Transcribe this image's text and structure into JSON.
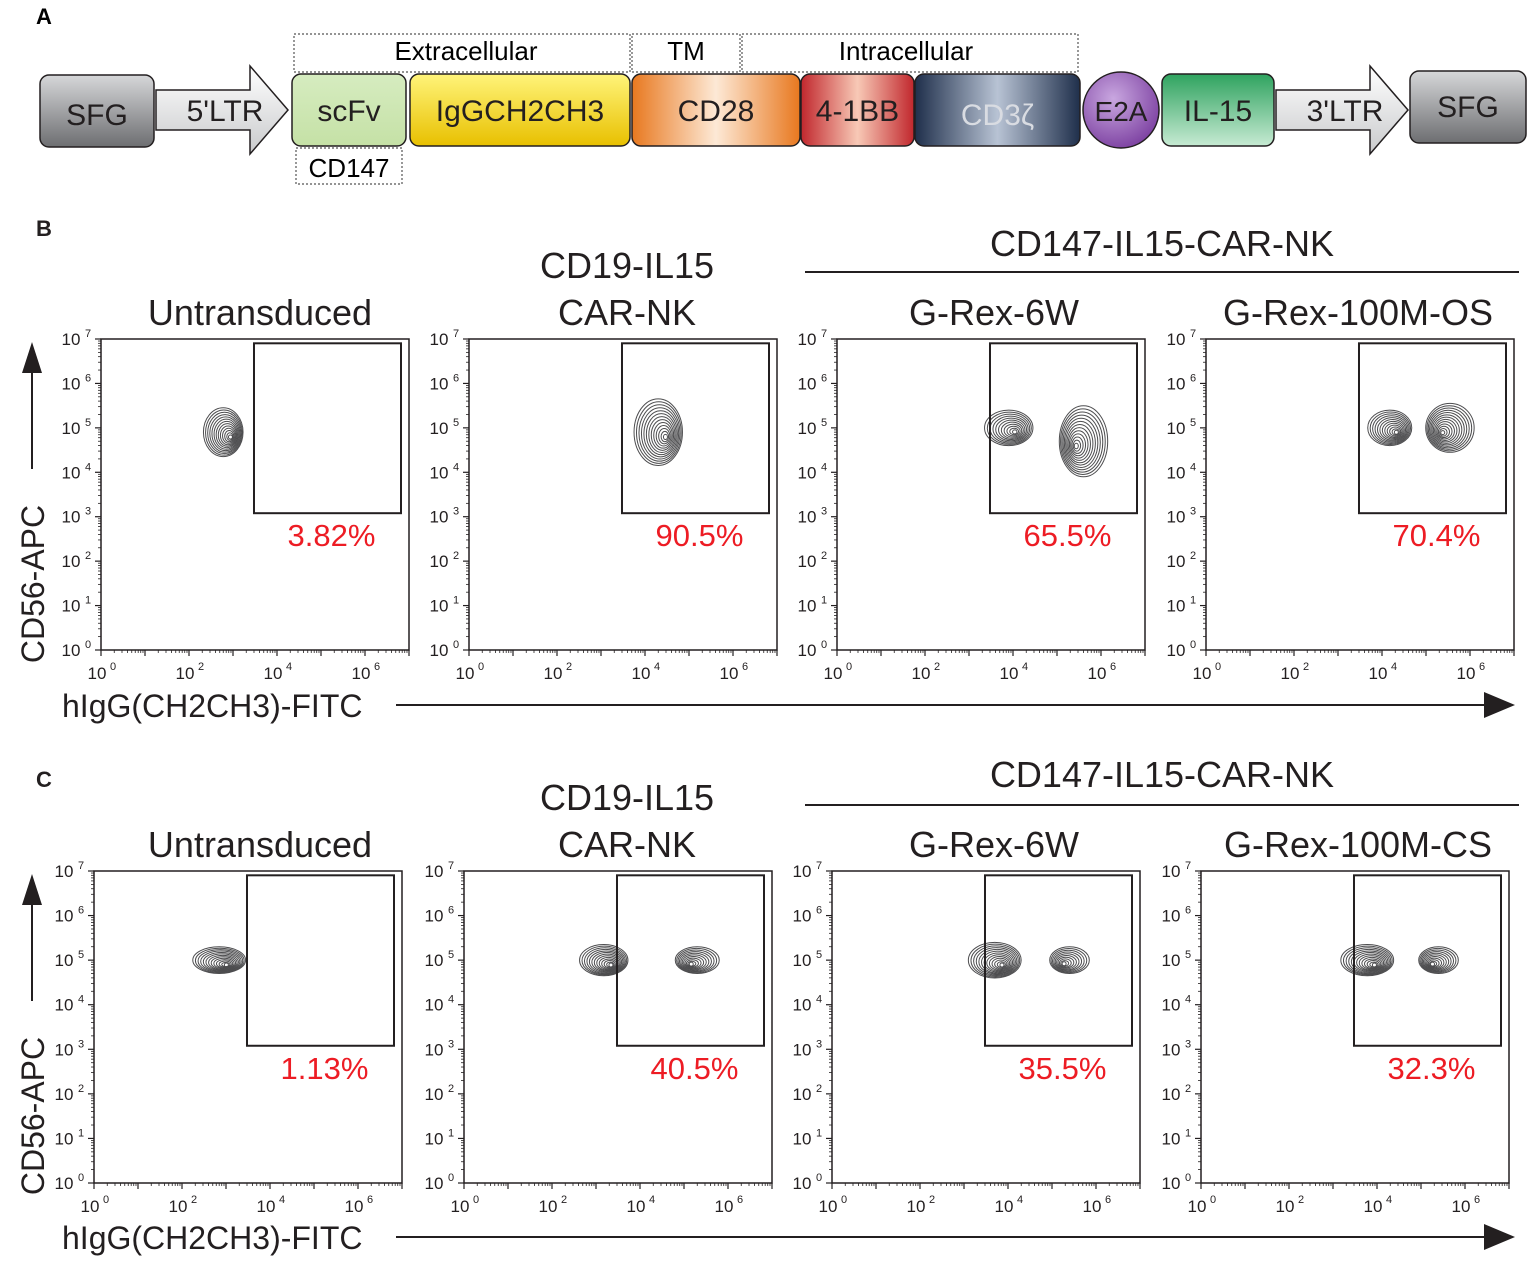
{
  "panel_a": {
    "label": "A",
    "region_labels": {
      "extracellular": "Extracellular",
      "tm": "TM",
      "intracellular": "Intracellular"
    },
    "sublabel": "CD147",
    "elements": [
      {
        "label": "SFG",
        "kind": "ltr",
        "fill": [
          "#d6d7d9",
          "#6d6e71"
        ]
      },
      {
        "label": "5'LTR",
        "kind": "arrow",
        "fill": [
          "#ffffff",
          "#c9cacc"
        ]
      },
      {
        "label": "scFv",
        "kind": "box",
        "fill": [
          "#d6ecc0",
          "#c5e1a6"
        ]
      },
      {
        "label": "IgGCH2CH3",
        "kind": "box",
        "fill": [
          "#fff47a",
          "#e8c000"
        ]
      },
      {
        "label": "CD28",
        "kind": "box",
        "fill": [
          "#e8781f",
          "#fde9d6"
        ]
      },
      {
        "label": "4-1BB",
        "kind": "box",
        "fill": [
          "#c1272d",
          "#f8c9b6"
        ]
      },
      {
        "label": "CD3ζ",
        "kind": "box",
        "fill": [
          "#1f2f4b",
          "#b8c3d4"
        ]
      },
      {
        "label": "E2A",
        "kind": "circle",
        "fill": [
          "#c9a7e0",
          "#7b3fa0"
        ]
      },
      {
        "label": "IL-15",
        "kind": "box",
        "fill": [
          "#2fa35f",
          "#c7ead3"
        ]
      },
      {
        "label": "3'LTR",
        "kind": "arrow",
        "fill": [
          "#ffffff",
          "#c9cacc"
        ]
      },
      {
        "label": "SFG",
        "kind": "ltr",
        "fill": [
          "#d6d7d9",
          "#6d6e71"
        ]
      }
    ]
  },
  "flow_rows": [
    {
      "label": "B",
      "group_title": "CD147-IL15-CAR-NK",
      "y_axis_label": "CD56-APC",
      "x_axis_label": "hIgG(CH2CH3)-FITC",
      "plots": [
        {
          "title_lines": [
            "Untransduced"
          ],
          "gate_percent": "3.82%"
        },
        {
          "title_lines": [
            "CD19-IL15",
            "CAR-NK"
          ],
          "gate_percent": "90.5%"
        },
        {
          "title_lines": [
            "G-Rex-6W"
          ],
          "gate_percent": "65.5%"
        },
        {
          "title_lines": [
            "G-Rex-100M-OS"
          ],
          "gate_percent": "70.4%"
        }
      ]
    },
    {
      "label": "C",
      "group_title": "CD147-IL15-CAR-NK",
      "y_axis_label": "CD56-APC",
      "x_axis_label": "hIgG(CH2CH3)-FITC",
      "plots": [
        {
          "title_lines": [
            "Untransduced"
          ],
          "gate_percent": "1.13%"
        },
        {
          "title_lines": [
            "CD19-IL15",
            "CAR-NK"
          ],
          "gate_percent": "40.5%"
        },
        {
          "title_lines": [
            "G-Rex-6W"
          ],
          "gate_percent": "35.5%"
        },
        {
          "title_lines": [
            "G-Rex-100M-CS"
          ],
          "gate_percent": "32.3%"
        }
      ]
    }
  ],
  "chart_data": [
    {
      "type": "contour",
      "panel": "B",
      "xlabel": "hIgG(CH2CH3)-FITC",
      "ylabel": "CD56-APC",
      "x_scale": "log",
      "y_scale": "log",
      "xlim": [
        1,
        10000000
      ],
      "ylim": [
        1,
        10000000
      ],
      "x_ticks": [
        "10^0",
        "10^2",
        "10^4",
        "10^6"
      ],
      "y_ticks": [
        "10^0",
        "10^1",
        "10^2",
        "10^3",
        "10^4",
        "10^5",
        "10^6",
        "10^7"
      ],
      "gate": {
        "x": [
          3000,
          10000000
        ],
        "y": [
          1200,
          8000000
        ]
      },
      "series": [
        {
          "name": "Untransduced",
          "gate_percent": 3.82,
          "populations": [
            {
              "x": 600,
              "y": 80000,
              "wx": 0.45,
              "wy": 0.55,
              "weight": 1.0
            }
          ]
        },
        {
          "name": "CD19-IL15 CAR-NK",
          "gate_percent": 90.5,
          "populations": [
            {
              "x": 20000,
              "y": 80000,
              "wx": 0.55,
              "wy": 0.75,
              "weight": 1.0
            }
          ]
        },
        {
          "name": "G-Rex-6W",
          "gate_percent": 65.5,
          "populations": [
            {
              "x": 8000,
              "y": 100000,
              "wx": 0.55,
              "wy": 0.4,
              "weight": 0.7
            },
            {
              "x": 400000,
              "y": 50000,
              "wx": 0.55,
              "wy": 0.8,
              "weight": 1.0
            }
          ]
        },
        {
          "name": "G-Rex-100M-OS",
          "gate_percent": 70.4,
          "populations": [
            {
              "x": 15000,
              "y": 100000,
              "wx": 0.5,
              "wy": 0.4,
              "weight": 0.8
            },
            {
              "x": 350000,
              "y": 100000,
              "wx": 0.55,
              "wy": 0.55,
              "weight": 1.0
            }
          ]
        }
      ]
    },
    {
      "type": "contour",
      "panel": "C",
      "xlabel": "hIgG(CH2CH3)-FITC",
      "ylabel": "CD56-APC",
      "x_scale": "log",
      "y_scale": "log",
      "xlim": [
        1,
        10000000
      ],
      "ylim": [
        1,
        10000000
      ],
      "x_ticks": [
        "10^0",
        "10^2",
        "10^4",
        "10^6"
      ],
      "y_ticks": [
        "10^0",
        "10^1",
        "10^2",
        "10^3",
        "10^4",
        "10^5",
        "10^6",
        "10^7"
      ],
      "gate": {
        "x": [
          3000,
          10000000
        ],
        "y": [
          1200,
          8000000
        ]
      },
      "series": [
        {
          "name": "Untransduced",
          "gate_percent": 1.13,
          "populations": [
            {
              "x": 700,
              "y": 100000,
              "wx": 0.6,
              "wy": 0.3,
              "weight": 1.0
            },
            {
              "x": 0.4,
              "y": 100000,
              "wx": 0.35,
              "wy": 0.2,
              "weight": 0.6
            }
          ]
        },
        {
          "name": "CD19-IL15 CAR-NK",
          "gate_percent": 40.5,
          "populations": [
            {
              "x": 1500,
              "y": 100000,
              "wx": 0.55,
              "wy": 0.35,
              "weight": 1.0
            },
            {
              "x": 200000,
              "y": 100000,
              "wx": 0.5,
              "wy": 0.3,
              "weight": 0.65
            }
          ]
        },
        {
          "name": "G-Rex-6W",
          "gate_percent": 35.5,
          "populations": [
            {
              "x": 5000,
              "y": 100000,
              "wx": 0.6,
              "wy": 0.4,
              "weight": 1.0
            },
            {
              "x": 250000,
              "y": 100000,
              "wx": 0.45,
              "wy": 0.3,
              "weight": 0.55
            }
          ]
        },
        {
          "name": "G-Rex-100M-CS",
          "gate_percent": 32.3,
          "populations": [
            {
              "x": 6000,
              "y": 100000,
              "wx": 0.6,
              "wy": 0.35,
              "weight": 1.0
            },
            {
              "x": 250000,
              "y": 100000,
              "wx": 0.45,
              "wy": 0.3,
              "weight": 0.6
            }
          ]
        }
      ]
    }
  ],
  "colors": {
    "gate_percent": "#ed1c24",
    "ink": "#231f20",
    "contour": "#4d4d4f"
  }
}
